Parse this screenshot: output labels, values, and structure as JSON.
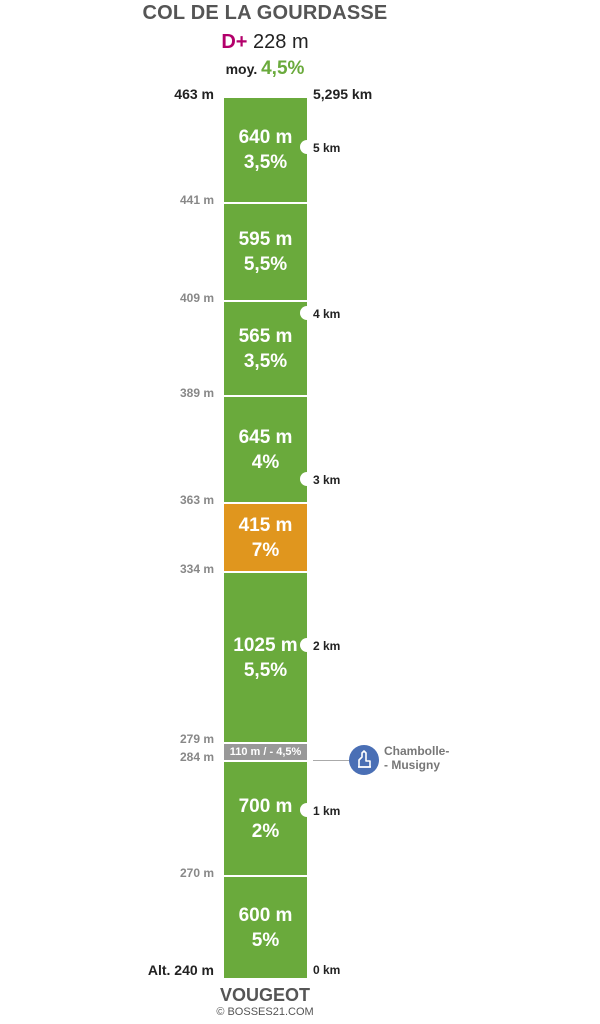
{
  "header": {
    "title": "COL DE LA GOURDASSE",
    "dplus_label": "D+",
    "dplus_value": "228 m",
    "moy_label": "moy.",
    "moy_value": "4,5%"
  },
  "top": {
    "altitude": "463 m",
    "distance": "5,295 km"
  },
  "bottom": {
    "altitude": "Alt. 240 m",
    "distance": "0 km",
    "start_name": "VOUGEOT",
    "credit": "© BOSSES21.COM"
  },
  "segments": [
    {
      "length": "640 m",
      "grade": "3,5%",
      "color": "#6aaa3c"
    },
    {
      "length": "595 m",
      "grade": "5,5%",
      "color": "#6aaa3c"
    },
    {
      "length": "565 m",
      "grade": "3,5%",
      "color": "#6aaa3c"
    },
    {
      "length": "645 m",
      "grade": "4%",
      "color": "#6aaa3c"
    },
    {
      "length": "415 m",
      "grade": "7%",
      "color": "#e0961e"
    },
    {
      "length": "1025 m",
      "grade": "5,5%",
      "color": "#6aaa3c"
    },
    {
      "length": "110 m",
      "grade": " / - 4,5%",
      "color": "#999999"
    },
    {
      "length": "700 m",
      "grade": "2%",
      "color": "#6aaa3c"
    },
    {
      "length": "600 m",
      "grade": "5%",
      "color": "#6aaa3c"
    }
  ],
  "altitudes": [
    "441 m",
    "409 m",
    "389 m",
    "363 m",
    "334 m",
    "279 m",
    "284 m",
    "270 m"
  ],
  "km_markers": [
    "5 km",
    "4 km",
    "3 km",
    "2 km",
    "1 km"
  ],
  "poi": {
    "name": "Chambolle-\n- Musigny",
    "icon": "church-icon",
    "color": "#4a6fb5"
  }
}
